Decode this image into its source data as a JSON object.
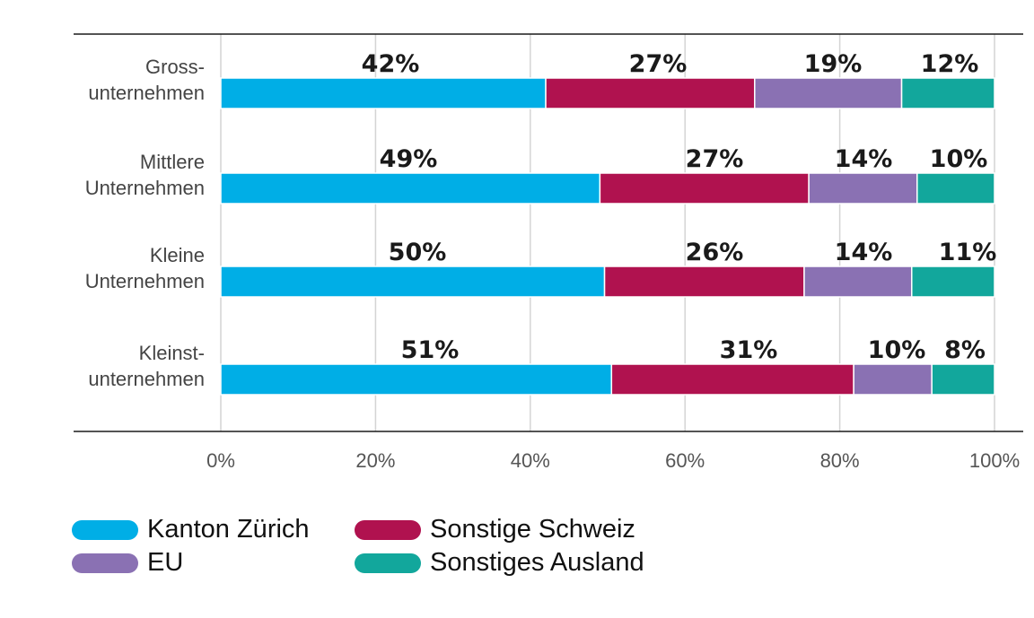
{
  "chart_data": {
    "type": "bar",
    "orientation": "horizontal",
    "stacked": true,
    "categories": [
      [
        "Gross-",
        "unternehmen"
      ],
      [
        "Mittlere",
        "Unternehmen"
      ],
      [
        "Kleine",
        "Unternehmen"
      ],
      [
        "Kleinst-",
        "unternehmen"
      ]
    ],
    "series": [
      {
        "name": "Kanton Zürich",
        "color": "#00aee6",
        "values": [
          42,
          49,
          50,
          51
        ]
      },
      {
        "name": "Sonstige Schweiz",
        "color": "#b0124f",
        "values": [
          27,
          27,
          26,
          31
        ]
      },
      {
        "name": "EU",
        "color": "#8a71b3",
        "values": [
          19,
          14,
          14,
          10
        ]
      },
      {
        "name": "Sonstiges Ausland",
        "color": "#12a79c",
        "values": [
          12,
          10,
          11,
          8
        ]
      }
    ],
    "segment_shares": [
      [
        42,
        27,
        19,
        12
      ],
      [
        49,
        27,
        14,
        10
      ],
      [
        49.6,
        25.8,
        13.9,
        10.7
      ],
      [
        50.5,
        31.3,
        10.1,
        8.1
      ]
    ],
    "data_labels": [
      [
        "42%",
        "27%",
        "19%",
        "12%"
      ],
      [
        "49%",
        "27%",
        "14%",
        "10%"
      ],
      [
        "50%",
        "26%",
        "14%",
        "11%"
      ],
      [
        "51%",
        "31%",
        "10%",
        "8%"
      ]
    ],
    "xticks": [
      "0%",
      "20%",
      "40%",
      "60%",
      "80%",
      "100%"
    ],
    "xlim": [
      0,
      100
    ],
    "grid": "vertical",
    "legend_position": "bottom-left",
    "title": "",
    "xlabel": "",
    "ylabel": ""
  },
  "legend": {
    "items": [
      {
        "label": "Kanton Zürich",
        "color": "#00aee6"
      },
      {
        "label": "Sonstige Schweiz",
        "color": "#b0124f"
      },
      {
        "label": "EU",
        "color": "#8a71b3"
      },
      {
        "label": "Sonstiges Ausland",
        "color": "#12a79c"
      }
    ]
  }
}
